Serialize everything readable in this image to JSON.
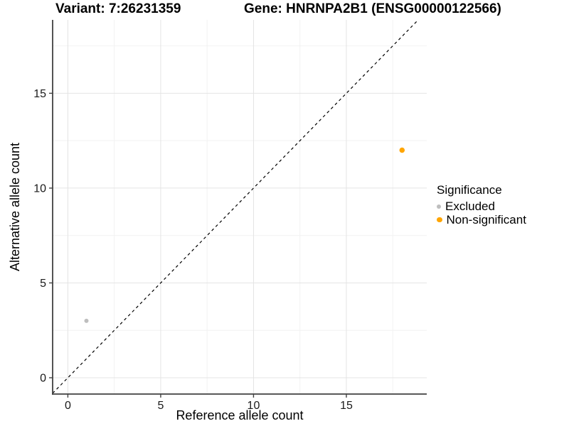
{
  "header": {
    "variant_title": "Variant: 7:26231359",
    "gene_title": "Gene: HNRNPA2B1 (ENSG00000122566)"
  },
  "chart_data": {
    "type": "scatter",
    "xlabel": "Reference allele count",
    "ylabel": "Alternative allele count",
    "xlim": [
      -0.82,
      19.33
    ],
    "ylim": [
      -0.86,
      18.87
    ],
    "xticks": [
      0,
      5,
      10,
      15
    ],
    "yticks": [
      0,
      5,
      10,
      15
    ],
    "minor_xticks": [
      2.5,
      7.5,
      12.5,
      17.5
    ],
    "minor_yticks": [
      2.5,
      7.5,
      12.5,
      17.5
    ],
    "grid": true,
    "identity_line": {
      "slope": 1,
      "intercept": 0,
      "style": "dashed",
      "color": "#000000"
    },
    "series": [
      {
        "name": "Excluded",
        "color": "#BEBEBE",
        "size": 6,
        "points": [
          {
            "x": 1,
            "y": 3
          }
        ]
      },
      {
        "name": "Non-significant",
        "color": "#FFA500",
        "size": 7.5,
        "points": [
          {
            "x": 18,
            "y": 12
          }
        ]
      }
    ],
    "legend": {
      "title": "Significance",
      "position": "right"
    },
    "colors": {
      "grid_major": "#e4e4e4",
      "grid_minor": "#f2f2f2",
      "axis_line": "#404040",
      "tick_label": "#1a1a1a",
      "axis_label": "#000000"
    }
  }
}
